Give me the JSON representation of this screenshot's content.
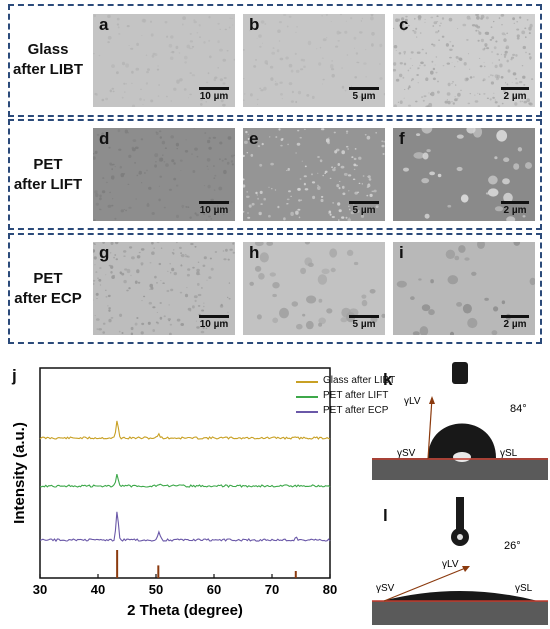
{
  "rows": [
    {
      "label_line1": "Glass",
      "label_line2": "after LIBT",
      "panels": [
        {
          "letter": "a",
          "scale": "10 µm"
        },
        {
          "letter": "b",
          "scale": "5 µm"
        },
        {
          "letter": "c",
          "scale": "2 µm"
        }
      ]
    },
    {
      "label_line1": "PET",
      "label_line2": "after LIFT",
      "panels": [
        {
          "letter": "d",
          "scale": "10 µm"
        },
        {
          "letter": "e",
          "scale": "5 µm"
        },
        {
          "letter": "f",
          "scale": "2 µm"
        }
      ]
    },
    {
      "label_line1": "PET",
      "label_line2": "after ECP",
      "panels": [
        {
          "letter": "g",
          "scale": "10 µm"
        },
        {
          "letter": "h",
          "scale": "5 µm"
        },
        {
          "letter": "i",
          "scale": "2 µm"
        }
      ]
    }
  ],
  "colors": {
    "frame": "#2b4a7a",
    "glass": "#c8a024",
    "lift": "#3da84a",
    "ecp": "#6a58a8",
    "ref": "#8b3a0e",
    "contact_line": "#c0392b"
  },
  "chart_data": {
    "type": "line",
    "panel_letter": "j",
    "xlabel": "2 Theta (degree)",
    "ylabel": "Intensity (a.u.)",
    "xlim": [
      30,
      80
    ],
    "xticks": [
      30,
      40,
      50,
      60,
      70,
      80
    ],
    "series": [
      {
        "name": "Glass after LIBT",
        "color": "#c8a024",
        "peaks": [
          [
            43.3,
            1.0
          ],
          [
            50.5,
            0.25
          ]
        ]
      },
      {
        "name": "PET after LIFT",
        "color": "#3da84a",
        "peaks": [
          [
            43.3,
            0.7
          ],
          [
            50.5,
            0.12
          ]
        ]
      },
      {
        "name": "PET after ECP",
        "color": "#6a58a8",
        "peaks": [
          [
            43.3,
            1.7
          ],
          [
            50.5,
            0.45
          ],
          [
            74.2,
            0.15
          ]
        ]
      }
    ],
    "reference_peaks": [
      [
        43.3,
        1.0
      ],
      [
        50.4,
        0.45
      ],
      [
        74.1,
        0.25
      ]
    ]
  },
  "contact": {
    "k": {
      "letter": "k",
      "angle": "84°",
      "lv": "γLV",
      "sv": "γSV",
      "sl": "γSL"
    },
    "l": {
      "letter": "l",
      "angle": "26°",
      "lv": "γLV",
      "sv": "γSV",
      "sl": "γSL"
    }
  }
}
